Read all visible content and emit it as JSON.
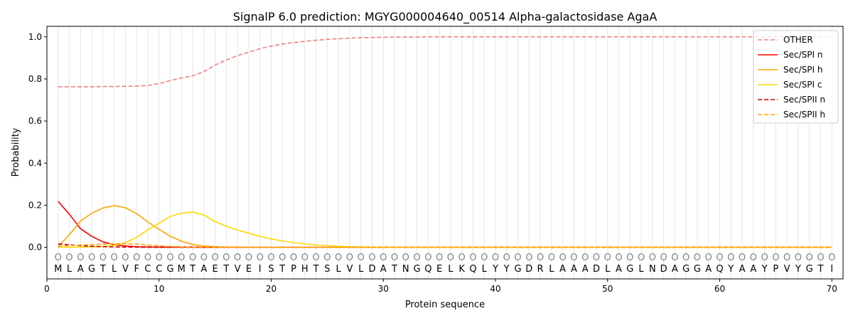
{
  "chart_data": {
    "type": "line",
    "title": "SignalP 6.0 prediction: MGYG000004640_00514 Alpha-galactosidase AgaA",
    "xlabel": "Protein sequence",
    "ylabel": "Probability",
    "xlim": [
      0,
      71
    ],
    "ylim": [
      -0.15,
      1.05
    ],
    "xticks": [
      0,
      10,
      20,
      30,
      40,
      50,
      60,
      70
    ],
    "yticks": [
      0.0,
      0.2,
      0.4,
      0.6,
      0.8,
      1.0
    ],
    "ytick_labels": [
      "0.0",
      "0.2",
      "0.4",
      "0.6",
      "0.8",
      "1.0"
    ],
    "grid": "vertical lines at each residue",
    "legend_position": "top-right",
    "sequence": [
      "M",
      "L",
      "A",
      "G",
      "T",
      "L",
      "V",
      "F",
      "C",
      "C",
      "G",
      "M",
      "T",
      "A",
      "E",
      "T",
      "V",
      "E",
      "I",
      "S",
      "T",
      "P",
      "H",
      "T",
      "S",
      "L",
      "V",
      "L",
      "D",
      "A",
      "T",
      "N",
      "G",
      "Q",
      "E",
      "L",
      "K",
      "Q",
      "L",
      "Y",
      "Y",
      "G",
      "D",
      "R",
      "L",
      "A",
      "A",
      "A",
      "D",
      "L",
      "A",
      "G",
      "L",
      "N",
      "D",
      "A",
      "G",
      "G",
      "A",
      "Q",
      "Y",
      "A",
      "A",
      "Y",
      "P",
      "V",
      "Y",
      "G",
      "T",
      "I"
    ],
    "prediction_marker": "O",
    "series": [
      {
        "name": "OTHER",
        "color": "#f08080",
        "dash": true,
        "values": [
          0.763,
          0.763,
          0.763,
          0.763,
          0.764,
          0.764,
          0.765,
          0.766,
          0.769,
          0.778,
          0.792,
          0.805,
          0.815,
          0.835,
          0.866,
          0.89,
          0.911,
          0.927,
          0.944,
          0.956,
          0.966,
          0.973,
          0.979,
          0.984,
          0.988,
          0.991,
          0.994,
          0.996,
          0.997,
          0.998,
          0.999,
          0.999,
          0.999,
          1.0,
          1.0,
          1.0,
          1.0,
          1.0,
          1.0,
          1.0,
          1.0,
          1.0,
          1.0,
          1.0,
          1.0,
          1.0,
          1.0,
          1.0,
          1.0,
          1.0,
          1.0,
          1.0,
          1.0,
          1.0,
          1.0,
          1.0,
          1.0,
          1.0,
          1.0,
          1.0,
          1.0,
          1.0,
          1.0,
          1.0,
          1.0,
          1.0,
          1.0,
          1.0,
          1.0,
          1.0
        ]
      },
      {
        "name": "Sec/SPI n",
        "color": "#ff0000",
        "dash": false,
        "values": [
          0.218,
          0.157,
          0.088,
          0.052,
          0.026,
          0.012,
          0.006,
          0.003,
          0.002,
          0.001,
          0.001,
          0.001,
          0.001,
          0.0,
          0.0,
          0.0,
          0.0,
          0.0,
          0.0,
          0.0,
          0.0,
          0.0,
          0.0,
          0.0,
          0.0,
          0.0,
          0.0,
          0.0,
          0.0,
          0.0,
          0.0,
          0.0,
          0.0,
          0.0,
          0.0,
          0.0,
          0.0,
          0.0,
          0.0,
          0.0,
          0.0,
          0.0,
          0.0,
          0.0,
          0.0,
          0.0,
          0.0,
          0.0,
          0.0,
          0.0,
          0.0,
          0.0,
          0.0,
          0.0,
          0.0,
          0.0,
          0.0,
          0.0,
          0.0,
          0.0,
          0.0,
          0.0,
          0.0,
          0.0,
          0.0,
          0.0,
          0.0,
          0.0,
          0.0,
          0.0
        ]
      },
      {
        "name": "Sec/SPI h",
        "color": "#ffa500",
        "dash": false,
        "values": [
          0.003,
          0.06,
          0.125,
          0.162,
          0.187,
          0.198,
          0.188,
          0.16,
          0.12,
          0.085,
          0.052,
          0.029,
          0.013,
          0.006,
          0.003,
          0.001,
          0.001,
          0.0,
          0.0,
          0.0,
          0.0,
          0.0,
          0.0,
          0.0,
          0.0,
          0.0,
          0.0,
          0.0,
          0.0,
          0.0,
          0.0,
          0.0,
          0.0,
          0.0,
          0.0,
          0.0,
          0.0,
          0.0,
          0.0,
          0.0,
          0.0,
          0.0,
          0.0,
          0.0,
          0.0,
          0.0,
          0.0,
          0.0,
          0.0,
          0.0,
          0.0,
          0.0,
          0.0,
          0.0,
          0.0,
          0.0,
          0.0,
          0.0,
          0.0,
          0.0,
          0.0,
          0.0,
          0.0,
          0.0,
          0.0,
          0.0,
          0.0,
          0.0,
          0.0,
          0.0
        ]
      },
      {
        "name": "Sec/SPI c",
        "color": "#ffd700",
        "dash": false,
        "values": [
          0.0,
          0.0,
          0.001,
          0.002,
          0.004,
          0.009,
          0.022,
          0.048,
          0.083,
          0.115,
          0.147,
          0.162,
          0.168,
          0.153,
          0.122,
          0.1,
          0.082,
          0.067,
          0.052,
          0.04,
          0.03,
          0.022,
          0.016,
          0.011,
          0.008,
          0.005,
          0.003,
          0.002,
          0.001,
          0.001,
          0.0,
          0.0,
          0.0,
          0.0,
          0.0,
          0.0,
          0.0,
          0.0,
          0.0,
          0.0,
          0.0,
          0.0,
          0.0,
          0.0,
          0.0,
          0.0,
          0.0,
          0.0,
          0.0,
          0.0,
          0.0,
          0.0,
          0.0,
          0.0,
          0.0,
          0.0,
          0.0,
          0.0,
          0.0,
          0.0,
          0.0,
          0.0,
          0.0,
          0.0,
          0.0,
          0.0,
          0.0,
          0.0,
          0.0,
          0.0
        ]
      },
      {
        "name": "Sec/SPII n",
        "color": "#cc0000",
        "dash": true,
        "values": [
          0.016,
          0.012,
          0.008,
          0.005,
          0.003,
          0.002,
          0.001,
          0.001,
          0.0,
          0.0,
          0.0,
          0.0,
          0.0,
          0.0,
          0.0,
          0.0,
          0.0,
          0.0,
          0.0,
          0.0,
          0.0,
          0.0,
          0.0,
          0.0,
          0.0,
          0.0,
          0.0,
          0.0,
          0.0,
          0.0,
          0.0,
          0.0,
          0.0,
          0.0,
          0.0,
          0.0,
          0.0,
          0.0,
          0.0,
          0.0,
          0.0,
          0.0,
          0.0,
          0.0,
          0.0,
          0.0,
          0.0,
          0.0,
          0.0,
          0.0,
          0.0,
          0.0,
          0.0,
          0.0,
          0.0,
          0.0,
          0.0,
          0.0,
          0.0,
          0.0,
          0.0,
          0.0,
          0.0,
          0.0,
          0.0,
          0.0,
          0.0,
          0.0,
          0.0,
          0.0
        ]
      },
      {
        "name": "Sec/SPII h",
        "color": "#ffa500",
        "dash": true,
        "values": [
          0.004,
          0.008,
          0.011,
          0.013,
          0.015,
          0.017,
          0.017,
          0.015,
          0.011,
          0.007,
          0.004,
          0.002,
          0.001,
          0.001,
          0.0,
          0.0,
          0.0,
          0.0,
          0.0,
          0.0,
          0.0,
          0.0,
          0.0,
          0.0,
          0.0,
          0.0,
          0.0,
          0.0,
          0.0,
          0.0,
          0.0,
          0.0,
          0.0,
          0.0,
          0.0,
          0.0,
          0.0,
          0.0,
          0.0,
          0.0,
          0.0,
          0.0,
          0.0,
          0.0,
          0.0,
          0.0,
          0.0,
          0.0,
          0.0,
          0.0,
          0.0,
          0.0,
          0.0,
          0.0,
          0.0,
          0.0,
          0.0,
          0.0,
          0.0,
          0.0,
          0.0,
          0.0,
          0.0,
          0.0,
          0.0,
          0.0,
          0.0,
          0.0,
          0.0,
          0.0
        ]
      }
    ]
  }
}
